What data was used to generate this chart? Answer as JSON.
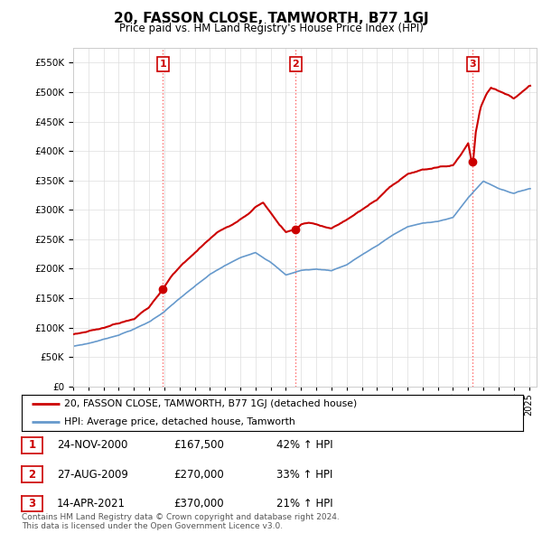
{
  "title": "20, FASSON CLOSE, TAMWORTH, B77 1GJ",
  "subtitle": "Price paid vs. HM Land Registry's House Price Index (HPI)",
  "ylim": [
    0,
    575000
  ],
  "ytick_values": [
    0,
    50000,
    100000,
    150000,
    200000,
    250000,
    300000,
    350000,
    400000,
    450000,
    500000,
    550000
  ],
  "x_start_year": 1995,
  "x_end_year": 2025,
  "sale_dates_float": [
    2000.896,
    2009.654,
    2021.286
  ],
  "sale_prices": [
    167500,
    270000,
    370000
  ],
  "sale_labels": [
    "1",
    "2",
    "3"
  ],
  "vline_color": "#ff6666",
  "red_line_color": "#cc0000",
  "blue_line_color": "#6699cc",
  "marker_color": "#cc0000",
  "legend_red_label": "20, FASSON CLOSE, TAMWORTH, B77 1GJ (detached house)",
  "legend_blue_label": "HPI: Average price, detached house, Tamworth",
  "table_data": [
    {
      "num": "1",
      "date": "24-NOV-2000",
      "price": "£167,500",
      "change": "42% ↑ HPI"
    },
    {
      "num": "2",
      "date": "27-AUG-2009",
      "price": "£270,000",
      "change": "33% ↑ HPI"
    },
    {
      "num": "3",
      "date": "14-APR-2021",
      "price": "£370,000",
      "change": "21% ↑ HPI"
    }
  ],
  "footer": "Contains HM Land Registry data © Crown copyright and database right 2024.\nThis data is licensed under the Open Government Licence v3.0.",
  "background_color": "#ffffff",
  "grid_color": "#dddddd"
}
